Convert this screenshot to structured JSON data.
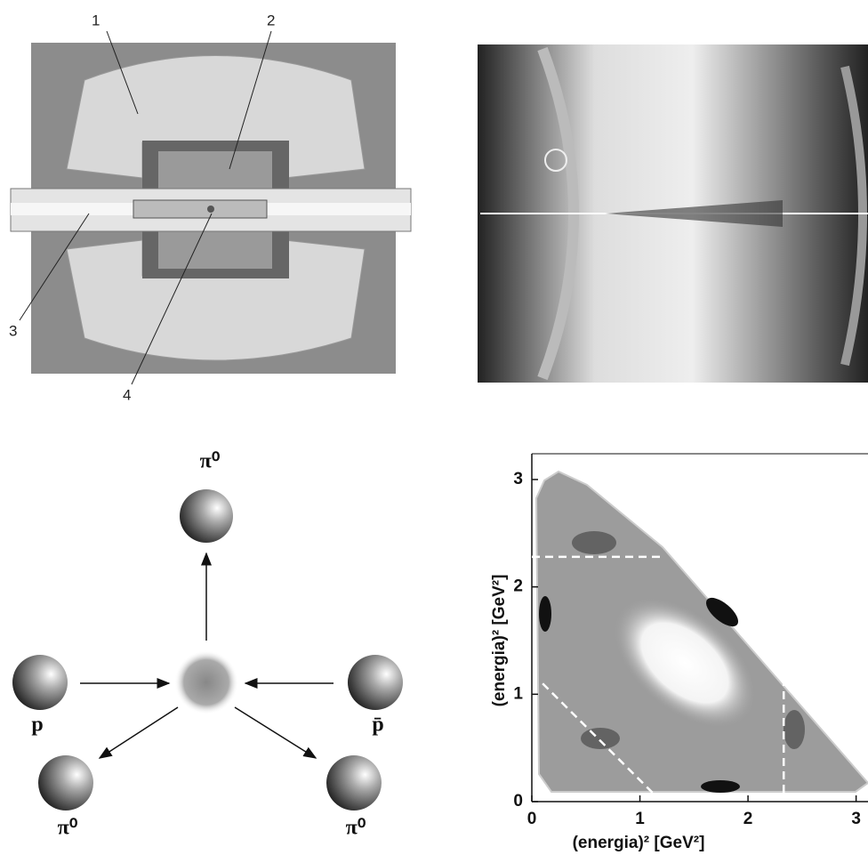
{
  "detector": {
    "labels": [
      "1",
      "2",
      "3",
      "4"
    ]
  },
  "annihilation": {
    "top": "π⁰",
    "left": "p",
    "right": "p̄",
    "bottom_left": "π⁰",
    "bottom_right": "π⁰"
  },
  "chart_data": {
    "type": "density",
    "xlabel": "(energia)² [GeV²]",
    "ylabel": "(energia)² [GeV²]",
    "xlim": [
      0,
      3.11
    ],
    "ylim": [
      0,
      3.24
    ],
    "xticks": [
      0,
      1,
      2,
      3
    ],
    "yticks": [
      0,
      1,
      2,
      3
    ],
    "hlines": [
      2.28
    ],
    "vlines": [
      2.33
    ],
    "diagonals": [
      1.2
    ]
  }
}
